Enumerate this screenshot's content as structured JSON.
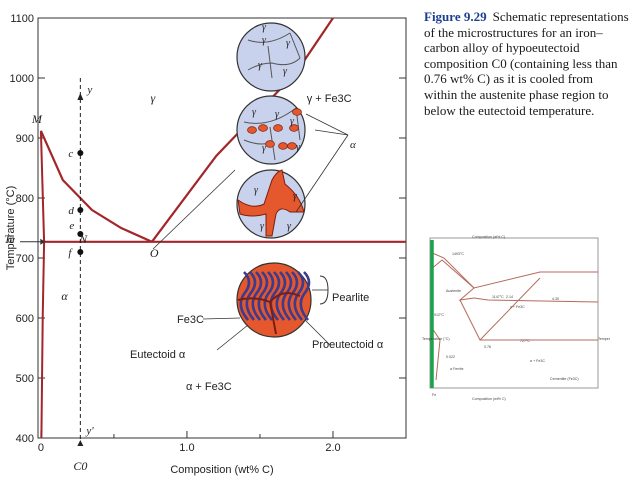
{
  "caption": {
    "figure_label": "Figure 9.29",
    "text": "Schematic representations of the microstructures for an iron–carbon alloy of hypoeutectoid composition C0 (containing less than 0.76 wt% C) as it is cooled from within the austenite phase region to below the eutectoid temperature."
  },
  "chart_data": {
    "type": "phase-diagram",
    "xlabel": "Composition (wt% C)",
    "ylabel": "Temperature (°C)",
    "x_ticks": [
      "0",
      "1.0",
      "2.0"
    ],
    "y_ticks": [
      "400",
      "500",
      "600",
      "700",
      "800",
      "900",
      "1000",
      "1100"
    ],
    "xlim": [
      -0.02,
      2.5
    ],
    "ylim": [
      400,
      1100
    ],
    "eutectoid_temperature": 727,
    "eutectoid_composition": 0.76,
    "composition_C0": 0.27,
    "phase_labels": [
      "γ",
      "γ + Fe3C",
      "α",
      "α + Fe3C"
    ],
    "point_labels": [
      "M",
      "N",
      "O",
      "Te",
      "c",
      "d",
      "e",
      "f",
      "y",
      "y'",
      "C0"
    ],
    "points": [
      {
        "label": "c",
        "x": 0.27,
        "y": 875
      },
      {
        "label": "d",
        "x": 0.27,
        "y": 780
      },
      {
        "label": "e",
        "x": 0.27,
        "y": 740
      },
      {
        "label": "f",
        "x": 0.27,
        "y": 710
      }
    ],
    "microstructure_labels": [
      "Pearlite",
      "Fe3C",
      "Eutectoid α",
      "Proeutectoid α"
    ],
    "grain_labels": [
      "γ",
      "α"
    ]
  },
  "thumbnail": {
    "labels": [
      "Composition (at% C)",
      "Composition (wt% C)",
      "Temperature (°C)",
      "Temperature (°F)",
      "Austenite",
      "γ + Fe3C",
      "α + Fe3C",
      "Cementite (Fe3C)",
      "α Ferrite",
      "Fe",
      "1493°C",
      "1147°C",
      "727°C",
      "912°C",
      "0.022",
      "4.30",
      "2.14",
      "0.76"
    ]
  }
}
